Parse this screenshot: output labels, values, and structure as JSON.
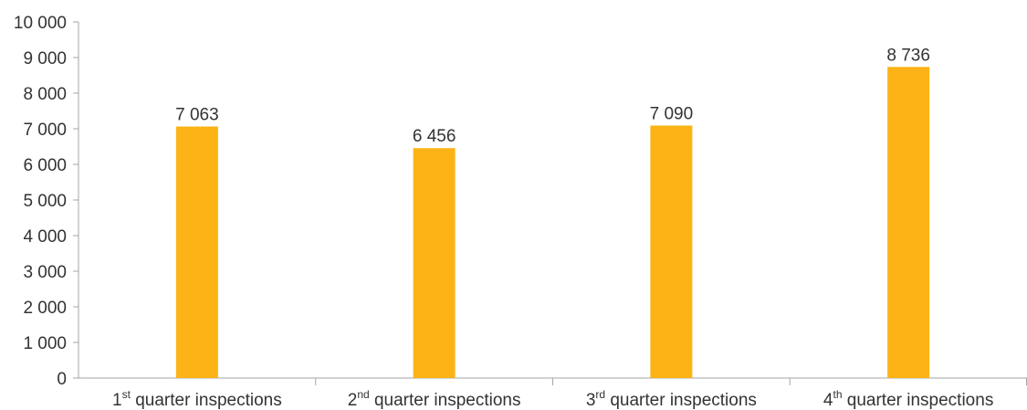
{
  "chart_data": {
    "type": "bar",
    "title": "",
    "xlabel": "",
    "ylabel": "",
    "categories": [
      {
        "number": "1",
        "suffix": "st",
        "text": " quarter inspections"
      },
      {
        "number": "2",
        "suffix": "nd",
        "text": " quarter inspections"
      },
      {
        "number": "3",
        "suffix": "rd",
        "text": " quarter inspections"
      },
      {
        "number": "4",
        "suffix": "th",
        "text": " quarter inspections"
      }
    ],
    "values": [
      7063,
      6456,
      7090,
      8736
    ],
    "data_labels": [
      "7 063",
      "6 456",
      "7 090",
      "8 736"
    ],
    "ylim": [
      0,
      10000
    ],
    "y_ticks": [
      {
        "value": 0,
        "label": "0"
      },
      {
        "value": 1000,
        "label": "1 000"
      },
      {
        "value": 2000,
        "label": "2 000"
      },
      {
        "value": 3000,
        "label": "3 000"
      },
      {
        "value": 4000,
        "label": "4 000"
      },
      {
        "value": 5000,
        "label": "5 000"
      },
      {
        "value": 6000,
        "label": "6 000"
      },
      {
        "value": 7000,
        "label": "7 000"
      },
      {
        "value": 8000,
        "label": "8 000"
      },
      {
        "value": 9000,
        "label": "9 000"
      },
      {
        "value": 10000,
        "label": "10 000"
      }
    ],
    "grid": false,
    "legend": "none",
    "bar_color": "#fbb316"
  }
}
